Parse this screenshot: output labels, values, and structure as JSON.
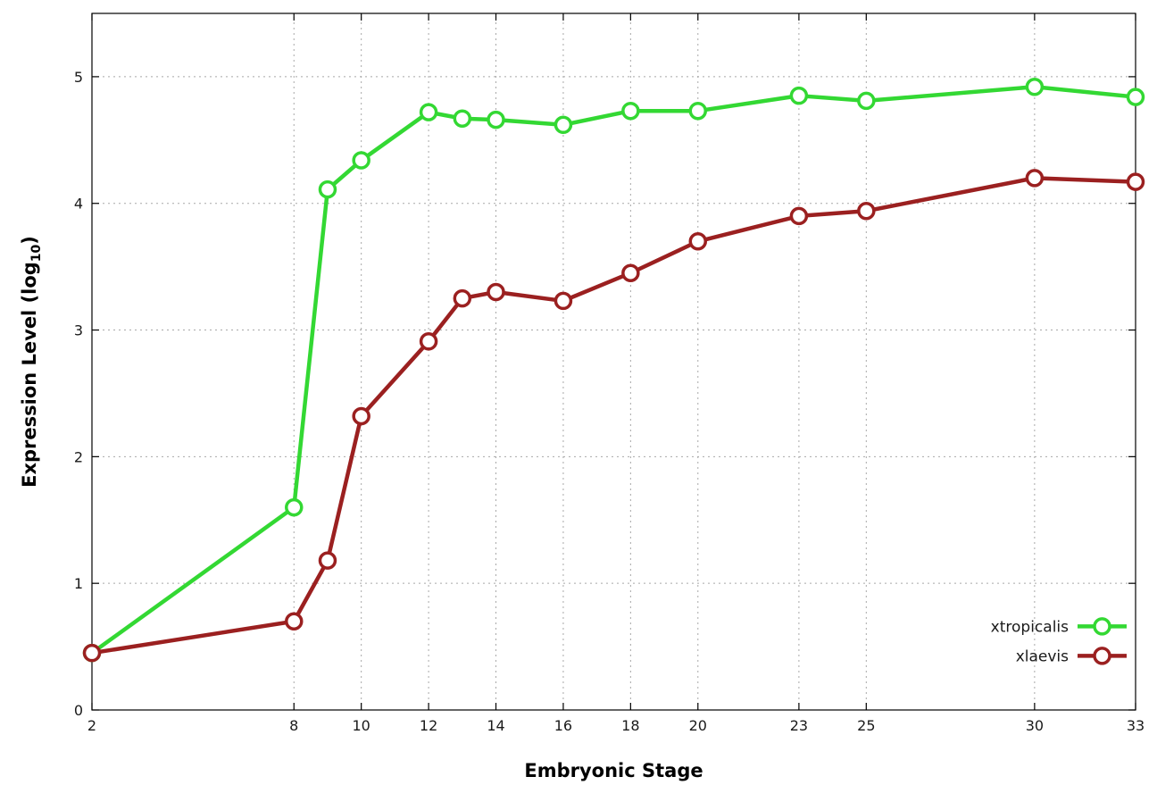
{
  "chart_data": {
    "type": "line",
    "title": "",
    "xlabel": "Embryonic Stage",
    "ylabel": "Expression Level (log10)",
    "ylabel_parts": {
      "pre": "Expression Level (log",
      "sub": "10",
      "post": ")"
    },
    "x": [
      2,
      8,
      9,
      10,
      12,
      13,
      14,
      16,
      18,
      20,
      23,
      25,
      30,
      33
    ],
    "xticks": [
      2,
      8,
      10,
      12,
      14,
      16,
      18,
      20,
      23,
      25,
      30,
      33
    ],
    "yticks": [
      0,
      1,
      2,
      3,
      4,
      5
    ],
    "xlim": [
      2,
      33
    ],
    "ylim": [
      0,
      5.5
    ],
    "grid": true,
    "legend_position": "bottom-right",
    "series": [
      {
        "name": "xtropicalis",
        "color": "#33d833",
        "values": [
          0.45,
          1.6,
          4.11,
          4.34,
          4.72,
          4.67,
          4.66,
          4.62,
          4.73,
          4.73,
          4.85,
          4.81,
          4.92,
          4.84
        ]
      },
      {
        "name": "xlaevis",
        "color": "#9b2020",
        "values": [
          0.45,
          0.7,
          1.18,
          2.32,
          2.91,
          3.25,
          3.3,
          3.23,
          3.45,
          3.7,
          3.9,
          3.94,
          4.2,
          4.17
        ]
      }
    ],
    "style": {
      "grid_color": "#a8a8a8",
      "axis_color": "#000000",
      "tick_label_color": "#1a1a1a",
      "line_width": 4.5,
      "marker_radius": 8.5,
      "marker_stroke": 3.5
    }
  }
}
